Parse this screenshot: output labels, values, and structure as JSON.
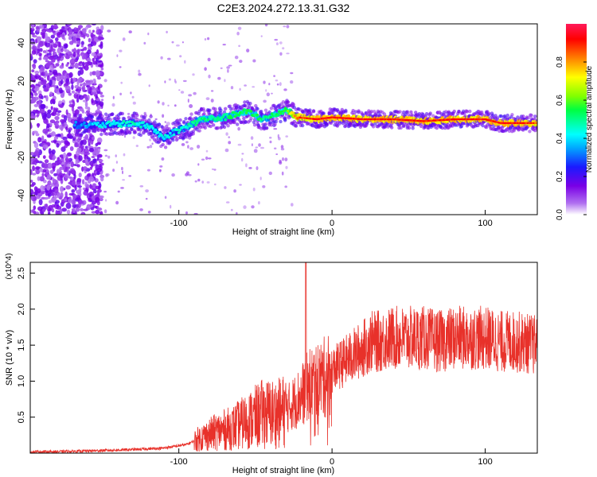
{
  "title": "C2E3.2024.272.13.31.G32",
  "chart_data": [
    {
      "type": "heatmap",
      "xlabel": "Height of straight line (km)",
      "ylabel": "Frequency (Hz)",
      "xlim": [
        -197,
        134
      ],
      "ylim": [
        -50,
        50
      ],
      "xticks": [
        -100,
        0,
        100
      ],
      "xtick_labels": [
        "-100",
        "0",
        "100"
      ],
      "yticks": [
        -40,
        -20,
        0,
        20,
        40
      ],
      "ytick_labels": [
        "-40",
        "-20",
        "0",
        "20",
        "40"
      ],
      "colorbar": {
        "label": "Normalized spectral amplitude",
        "range": [
          0,
          1
        ],
        "ticks": [
          0.0,
          0.2,
          0.4,
          0.6,
          0.8
        ],
        "tick_labels": [
          "0.0",
          "0.2",
          "0.4",
          "0.6",
          "0.8"
        ],
        "colormap": "rainbow (white → purple → blue → cyan → green → yellow → red)"
      },
      "ridge": {
        "description": "Dominant frequency ridge vs. height",
        "x": [
          -168,
          -150,
          -130,
          -118,
          -110,
          -104,
          -95,
          -85,
          -70,
          -55,
          -45,
          -38,
          -30,
          -22,
          -10,
          0,
          20,
          40,
          60,
          80,
          100,
          110,
          120,
          134
        ],
        "y": [
          -3,
          -3,
          -2,
          -4,
          -10,
          -7,
          -4,
          0,
          1,
          4,
          0,
          2,
          5,
          1,
          0,
          1,
          0,
          0,
          -1,
          0,
          0,
          -2,
          -2,
          -2
        ],
        "amplitude": [
          0.35,
          0.45,
          0.5,
          0.45,
          0.45,
          0.45,
          0.5,
          0.55,
          0.55,
          0.6,
          0.55,
          0.55,
          0.6,
          0.9,
          0.95,
          0.95,
          0.95,
          0.95,
          0.95,
          0.95,
          0.95,
          0.95,
          0.95,
          0.9
        ]
      },
      "noise_region": {
        "x": [
          -197,
          -150
        ],
        "description": "Broadband purple noise at low heights"
      }
    },
    {
      "type": "line",
      "xlabel": "Height of straight line (km)",
      "ylabel": "SNR (10 * v/v)",
      "y_multiplier": "(x10^4)",
      "xlim": [
        -197,
        134
      ],
      "ylim": [
        0,
        2.65
      ],
      "xticks": [
        -100,
        0,
        100
      ],
      "xtick_labels": [
        "-100",
        "0",
        "100"
      ],
      "yticks": [
        0.5,
        1.0,
        1.5,
        2.0,
        2.5
      ],
      "ytick_labels": [
        "0.5",
        "1.0",
        "1.5",
        "2.0",
        "2.5"
      ],
      "series": [
        {
          "color": "#e8312a",
          "x": [
            -197,
            -180,
            -160,
            -145,
            -130,
            -110,
            -95,
            -85,
            -75,
            -65,
            -55,
            -45,
            -40,
            -35,
            -30,
            -25,
            -20,
            -15,
            -10,
            -5,
            0,
            10,
            20,
            25,
            30,
            40,
            50,
            60,
            70,
            80,
            90,
            100,
            110,
            120,
            134
          ],
          "y": [
            0.02,
            0.02,
            0.03,
            0.04,
            0.05,
            0.07,
            0.12,
            0.22,
            0.3,
            0.35,
            0.45,
            0.55,
            0.55,
            0.55,
            0.6,
            0.7,
            0.8,
            0.95,
            1.0,
            1.05,
            1.15,
            1.3,
            1.45,
            1.55,
            1.55,
            1.6,
            1.6,
            1.6,
            1.55,
            1.6,
            1.6,
            1.6,
            1.55,
            1.55,
            1.5
          ]
        }
      ],
      "spike": {
        "x": -17,
        "y": 2.65
      }
    }
  ],
  "icons": {}
}
